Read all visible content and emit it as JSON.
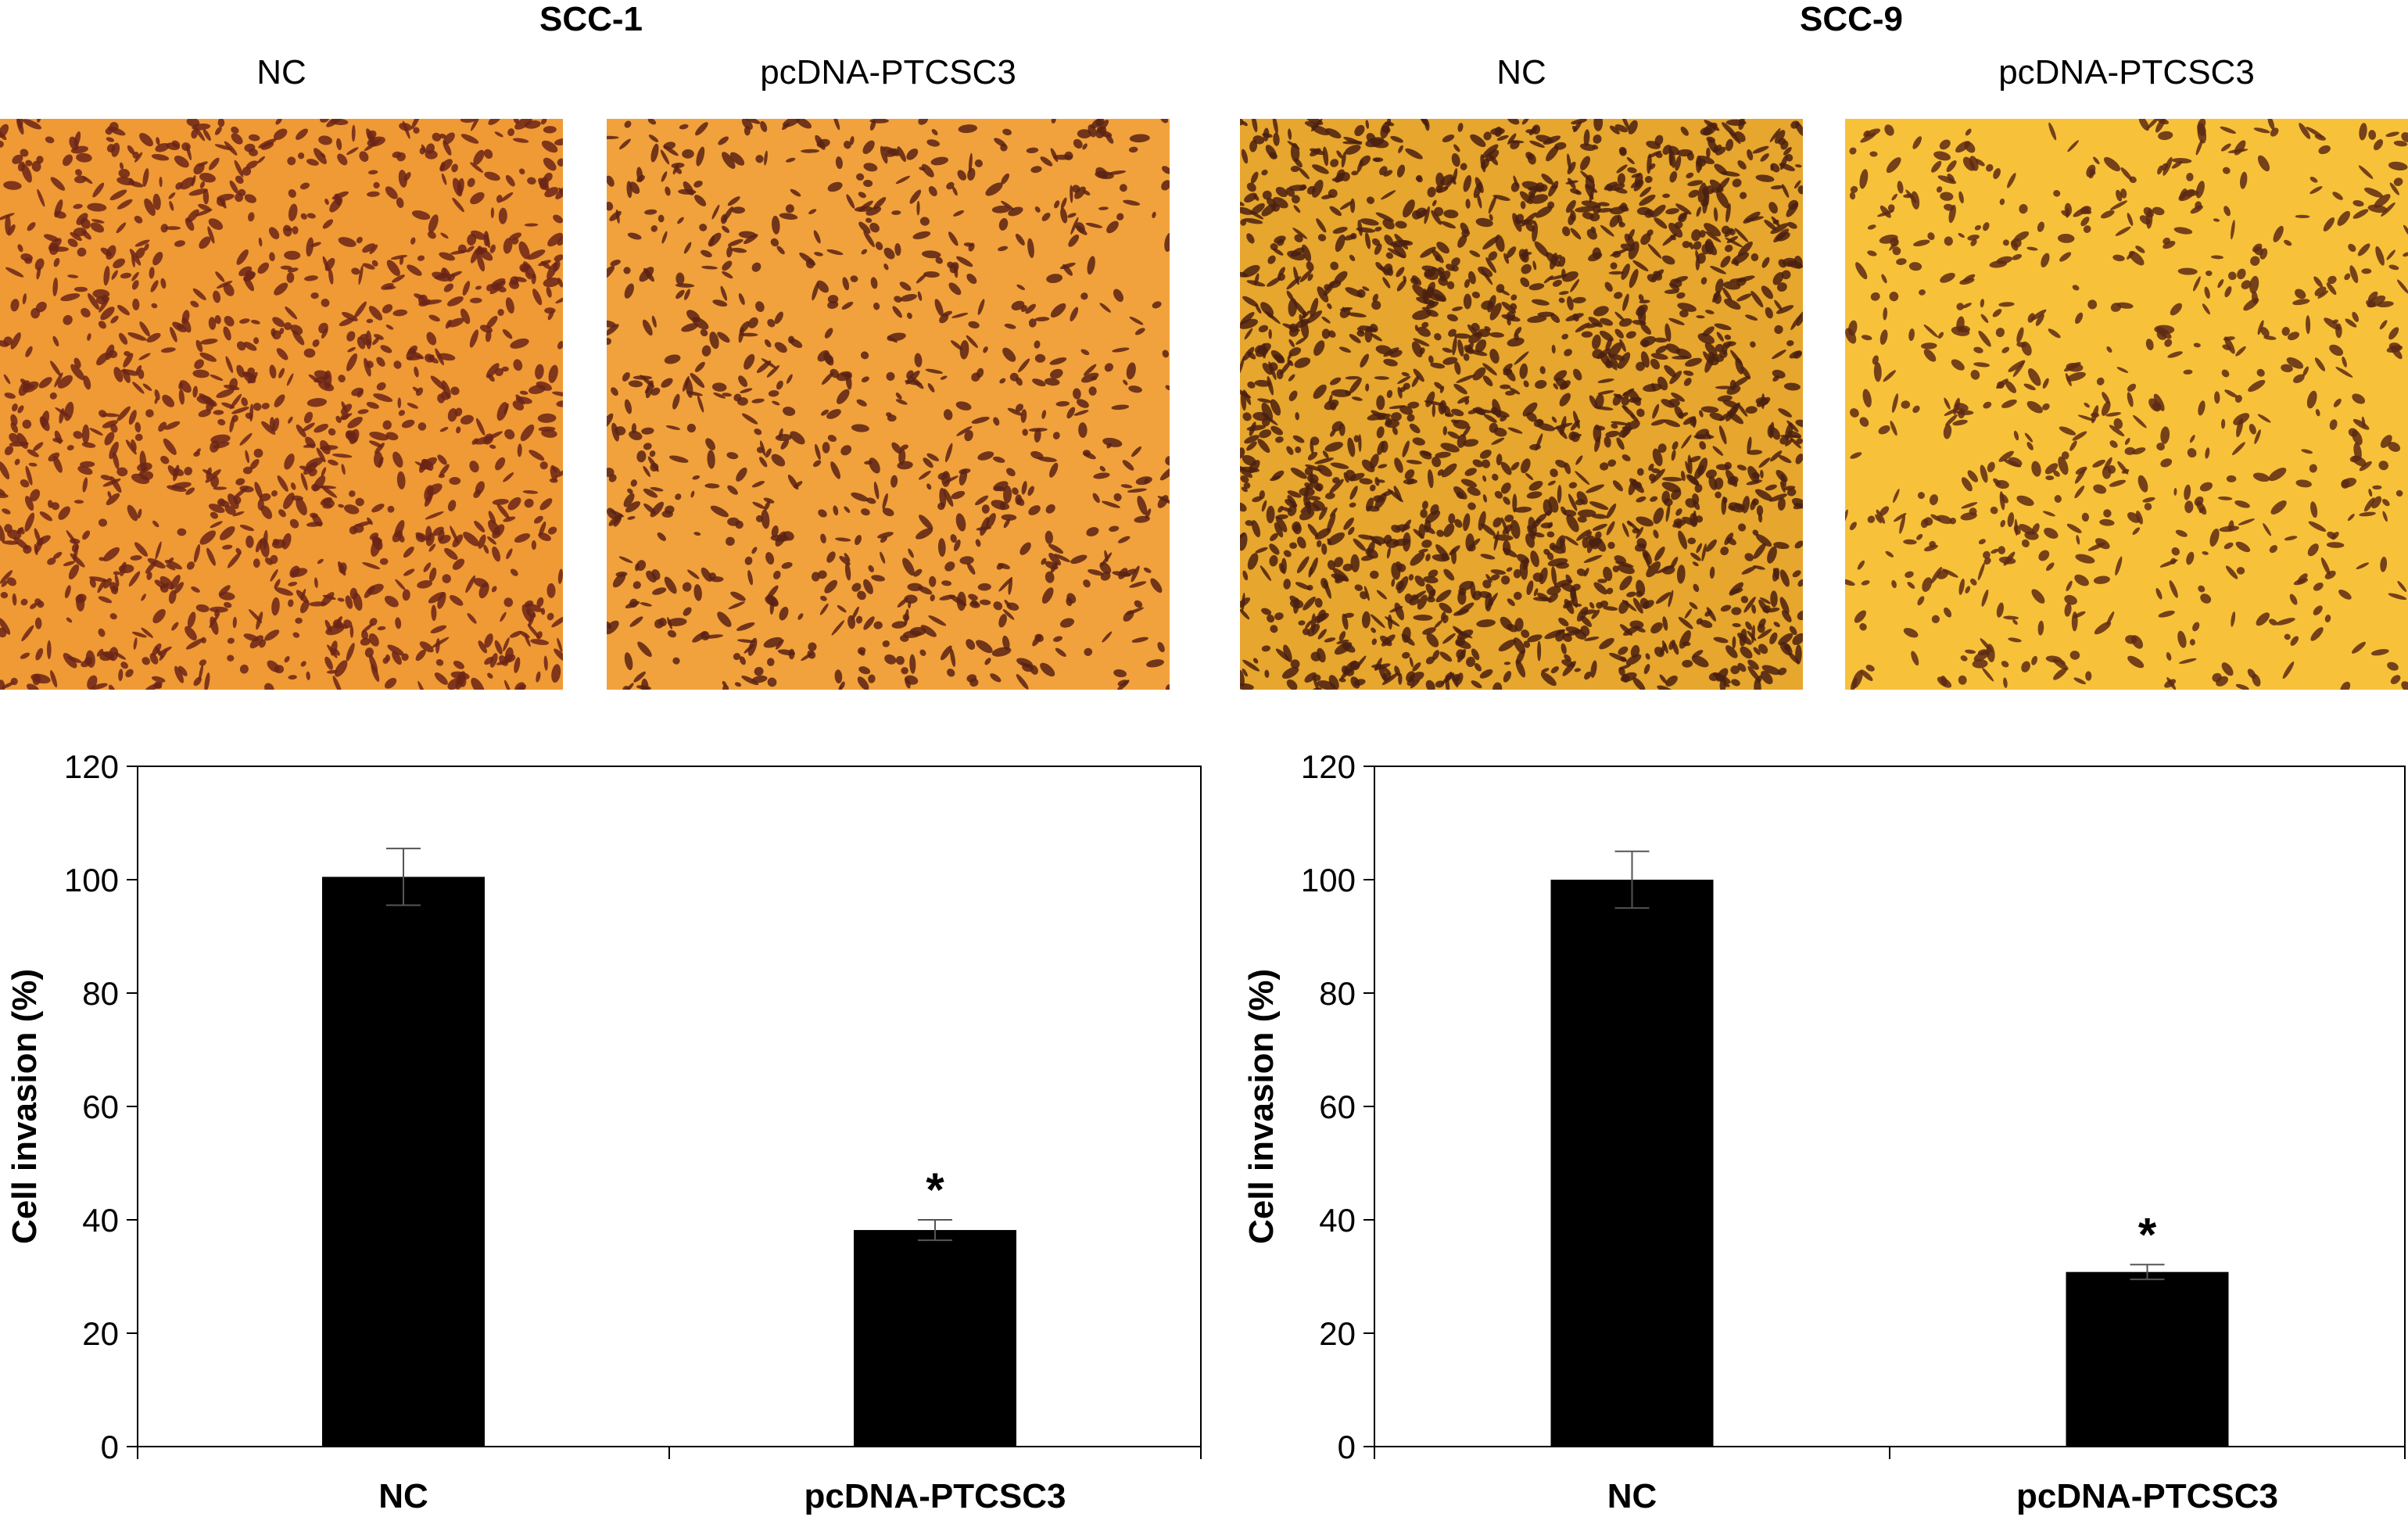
{
  "panels": [
    {
      "title": "SCC-1",
      "images": [
        {
          "label": "NC",
          "bg": "#ef9a35",
          "cell": "#6b2416",
          "density": 1150,
          "seed": 11
        },
        {
          "label": "pcDNA-PTCSC3",
          "bg": "#f2a23c",
          "cell": "#5a2214",
          "density": 780,
          "seed": 23
        }
      ]
    },
    {
      "title": "SCC-9",
      "images": [
        {
          "label": "NC",
          "bg": "#e7a62d",
          "cell": "#4a2010",
          "density": 1700,
          "seed": 37
        },
        {
          "label": "pcDNA-PTCSC3",
          "bg": "#f7c23a",
          "cell": "#5e2a14",
          "density": 640,
          "seed": 53
        }
      ]
    }
  ],
  "chart_data": [
    {
      "type": "bar",
      "categories": [
        "NC",
        "pcDNA-PTCSC3"
      ],
      "values": [
        100.5,
        38.2
      ],
      "errors": [
        5.0,
        1.8
      ],
      "significance": [
        "",
        "*"
      ],
      "ylabel": "Cell invasion (%)",
      "ylim": [
        0,
        120
      ],
      "yticks": [
        0,
        20,
        40,
        60,
        80,
        100,
        120
      ],
      "bar_color": "#000000"
    },
    {
      "type": "bar",
      "categories": [
        "NC",
        "pcDNA-PTCSC3"
      ],
      "values": [
        100.0,
        30.8
      ],
      "errors": [
        5.0,
        1.3
      ],
      "significance": [
        "",
        "*"
      ],
      "ylabel": "Cell invasion (%)",
      "ylim": [
        0,
        120
      ],
      "yticks": [
        0,
        20,
        40,
        60,
        80,
        100,
        120
      ],
      "bar_color": "#000000"
    }
  ]
}
